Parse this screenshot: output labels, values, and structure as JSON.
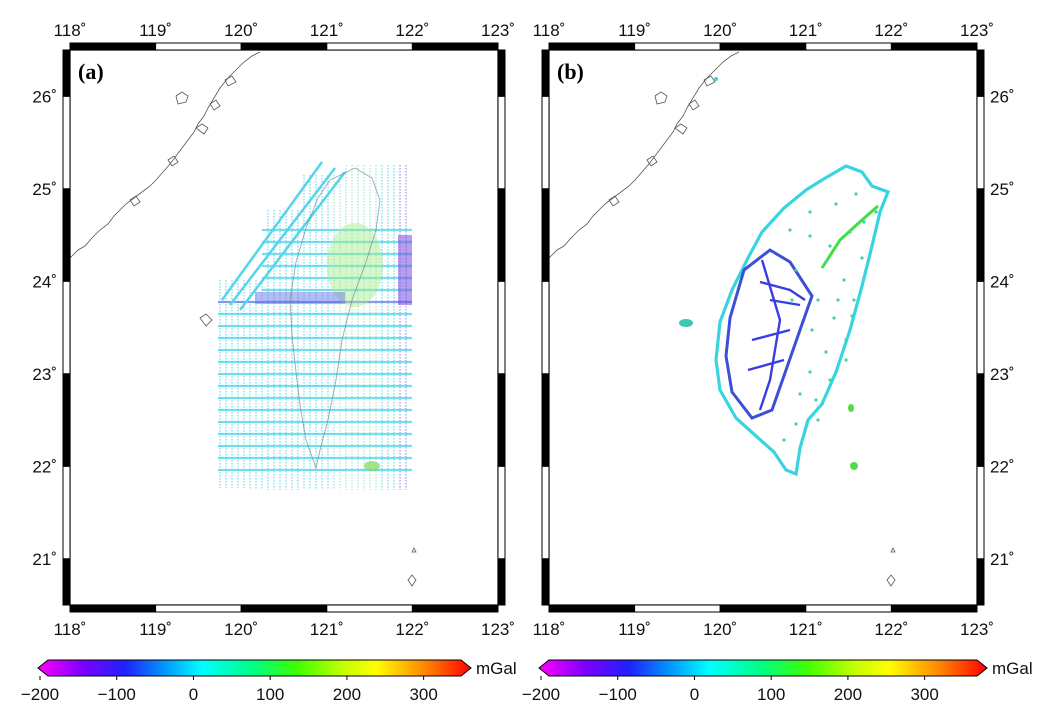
{
  "panels": [
    {
      "label": "(a)",
      "type": "marine-track-gravity"
    },
    {
      "label": "(b)",
      "type": "land-station-gravity"
    }
  ],
  "map": {
    "lon_range": [
      118,
      123
    ],
    "lat_range": [
      20.5,
      26.5
    ],
    "lon_ticks": [
      118,
      119,
      120,
      121,
      122,
      123
    ],
    "lat_ticks": [
      21,
      22,
      23,
      24,
      25,
      26
    ],
    "lon_tick_labels": [
      "118˚",
      "119˚",
      "120˚",
      "121˚",
      "122˚",
      "123˚"
    ],
    "lat_tick_labels": [
      "21˚",
      "22˚",
      "23˚",
      "24˚",
      "25˚",
      "26˚"
    ]
  },
  "colorbar": {
    "unit": "mGal",
    "range": [
      -200,
      350
    ],
    "ticks": [
      -200,
      -100,
      0,
      100,
      200,
      300
    ],
    "tick_labels": [
      "−200",
      "−100",
      "0",
      "100",
      "200",
      "300"
    ],
    "colors": [
      "#ff00ff",
      "#8000ff",
      "#2020ff",
      "#00a0ff",
      "#00ffff",
      "#00ff80",
      "#40ff00",
      "#c0ff00",
      "#ffff00",
      "#ff8000",
      "#ff0000"
    ]
  },
  "colors": {
    "frame": "#000000",
    "coastline": "#555555",
    "track_base": "#55d5e8"
  }
}
